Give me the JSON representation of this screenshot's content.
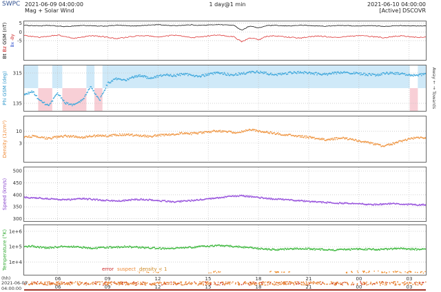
{
  "header": {
    "brand": "SWPC",
    "brand_color": "#2f4f8f",
    "start_datetime": "2021-06-09 04:00:00",
    "plot_type": "Mag + Solar Wind",
    "resolution": "1 day@1 min",
    "end_datetime": "2021-06-10 04:00:00",
    "source_status": "[Active] DSCOVR"
  },
  "footer": {
    "x_unit": "(hh)",
    "start_date": "2021-06-09",
    "start_time": "04:00:00",
    "baseline_color": "#a03326",
    "strip_colors": [
      "#e5823a",
      "#cc3322",
      "#f0a055"
    ],
    "legend": [
      {
        "label": "error",
        "color": "#cc2222"
      },
      {
        "label": "suspect",
        "color": "#ee8833"
      },
      {
        "label": "density < 1",
        "color": "#cc8822"
      }
    ]
  },
  "x_axis": {
    "total_hours": 24,
    "hours": [
      2,
      5,
      8,
      11,
      14,
      17,
      20,
      23
    ],
    "labels": [
      "06",
      "09",
      "12",
      "15",
      "18",
      "21",
      "00",
      "03"
    ]
  },
  "chart_data": [
    {
      "id": "mag",
      "type": "line",
      "scale": "linear",
      "ylabel_parts": [
        {
          "text": "Bt ",
          "color": "#111111"
        },
        {
          "text": "Bz ",
          "color": "#cc2222"
        },
        {
          "text": "GSM (nT)",
          "color": "#111111"
        }
      ],
      "ylabel2_parts": [
        {
          "text": "Bx ",
          "color": "#2244cc"
        },
        {
          "text": "-By",
          "color": "#cc2222"
        }
      ],
      "ylim": [
        -16,
        6
      ],
      "yticks": [
        {
          "v": 5,
          "label": "5"
        },
        {
          "v": 0,
          "label": "0"
        },
        {
          "v": -5,
          "label": "-5"
        }
      ],
      "series": [
        {
          "name": "Bt",
          "color": "#111111",
          "noise": 0.18,
          "values": [
            3.8,
            3.6,
            3.4,
            3.7,
            3.3,
            3.0,
            3.4,
            3.7,
            3.5,
            3.2,
            3.4,
            3.8,
            3.6,
            3.3,
            3.6,
            3.9,
            4.1,
            3.8,
            3.5,
            3.8,
            4.0,
            3.7,
            3.9,
            4.2,
            4.0,
            3.8,
            1.0,
            3.4,
            2.2,
            3.6,
            3.7,
            3.4,
            3.5,
            3.8,
            3.6,
            3.4,
            3.2,
            3.5,
            3.7,
            3.5,
            3.3,
            3.6,
            3.4,
            3.2,
            3.4,
            3.6,
            3.5,
            3.3,
            3.4
          ]
        },
        {
          "name": "Bz",
          "color": "#dd3333",
          "noise": 0.3,
          "values": [
            -2.0,
            -2.6,
            -3.1,
            -2.4,
            -1.8,
            -2.9,
            -3.6,
            -2.8,
            -2.2,
            -2.6,
            -3.1,
            -3.8,
            -3.3,
            -2.6,
            -2.1,
            -2.4,
            -2.9,
            -2.3,
            -1.9,
            -2.6,
            -3.3,
            -2.9,
            -2.3,
            -1.8,
            -2.2,
            -2.8,
            -5.5,
            -3.4,
            -4.5,
            -2.6,
            -2.2,
            -2.8,
            -3.2,
            -3.5,
            -2.9,
            -2.3,
            -2.7,
            -3.3,
            -2.9,
            -2.5,
            -2.1,
            -2.5,
            -2.9,
            -3.3,
            -2.7,
            -2.3,
            -2.7,
            -3.1,
            -2.9
          ]
        }
      ]
    },
    {
      "id": "phi",
      "type": "scatter",
      "scale": "linear",
      "ylabel_parts": [
        {
          "text": "Phi GSM (deg)",
          "color": "#3399cc"
        }
      ],
      "right_label": "Away ← → Towards",
      "ylim": [
        90,
        360
      ],
      "yticks": [
        {
          "v": 315,
          "label": "315"
        },
        {
          "v": 135,
          "label": "135"
        }
      ],
      "sector_bands": {
        "towards": {
          "v0": 225,
          "v1": 360,
          "color": "#cfe9f8"
        },
        "away": {
          "v0": 90,
          "v1": 225,
          "color": "#f8cfd6"
        }
      },
      "sectors": [
        {
          "t0": 0.0,
          "t1": 0.035,
          "s": "towards"
        },
        {
          "t0": 0.035,
          "t1": 0.07,
          "s": "away"
        },
        {
          "t0": 0.07,
          "t1": 0.095,
          "s": "towards"
        },
        {
          "t0": 0.095,
          "t1": 0.155,
          "s": "away"
        },
        {
          "t0": 0.155,
          "t1": 0.175,
          "s": "towards"
        },
        {
          "t0": 0.175,
          "t1": 0.195,
          "s": "away"
        },
        {
          "t0": 0.195,
          "t1": 0.96,
          "s": "towards"
        },
        {
          "t0": 0.96,
          "t1": 0.98,
          "s": "away"
        },
        {
          "t0": 0.98,
          "t1": 1.0,
          "s": "towards"
        }
      ],
      "series": [
        {
          "name": "Phi",
          "color": "#44aadd",
          "noise": 7,
          "values": [
            185,
            205,
            145,
            120,
            195,
            135,
            125,
            155,
            235,
            150,
            255,
            280,
            270,
            290,
            300,
            285,
            295,
            305,
            298,
            310,
            303,
            295,
            306,
            315,
            310,
            304,
            312,
            318,
            322,
            312,
            303,
            312,
            316,
            320,
            315,
            310,
            306,
            314,
            320,
            316,
            310,
            306,
            302,
            312,
            316,
            310,
            304,
            300,
            310
          ]
        }
      ]
    },
    {
      "id": "density",
      "type": "scatter",
      "scale": "log",
      "ylabel_parts": [
        {
          "text": "Density (1/cm³)",
          "color": "#ee8833"
        }
      ],
      "ylim": [
        0.45,
        45
      ],
      "yticks": [
        {
          "v": 10,
          "label": "10"
        },
        {
          "v": 3,
          "label": "3"
        }
      ],
      "series": [
        {
          "name": "Density",
          "color": "#f09a4a",
          "noise": 0.045,
          "values": [
            5.5,
            6.0,
            5.2,
            4.8,
            5.6,
            6.2,
            5.8,
            5.4,
            6.0,
            6.5,
            6.2,
            6.8,
            7.2,
            6.8,
            6.4,
            6.0,
            6.5,
            7.0,
            7.6,
            8.2,
            7.8,
            8.5,
            9.2,
            10.5,
            9.8,
            8.8,
            9.5,
            11.5,
            10.2,
            9.0,
            8.0,
            7.2,
            6.5,
            6.0,
            5.4,
            4.8,
            4.2,
            4.6,
            5.0,
            4.4,
            3.8,
            3.2,
            2.6,
            2.2,
            2.8,
            3.6,
            4.6,
            5.2,
            4.8
          ]
        }
      ]
    },
    {
      "id": "speed",
      "type": "scatter",
      "scale": "linear",
      "ylabel_parts": [
        {
          "text": "Speed (km/s)",
          "color": "#8844cc"
        }
      ],
      "ylim": [
        290,
        515
      ],
      "yticks": [
        {
          "v": 500,
          "label": "500"
        },
        {
          "v": 450,
          "label": "450"
        },
        {
          "v": 400,
          "label": "400"
        },
        {
          "v": 350,
          "label": "350"
        },
        {
          "v": 300,
          "label": "300"
        }
      ],
      "series": [
        {
          "name": "Speed",
          "color": "#9955dd",
          "noise": 3,
          "values": [
            390,
            388,
            386,
            383,
            381,
            379,
            381,
            384,
            381,
            378,
            376,
            374,
            376,
            379,
            381,
            379,
            376,
            373,
            371,
            373,
            376,
            379,
            382,
            386,
            391,
            394,
            396,
            392,
            388,
            385,
            382,
            380,
            378,
            375,
            372,
            370,
            368,
            366,
            365,
            363,
            362,
            360,
            359,
            361,
            363,
            361,
            359,
            358,
            359
          ]
        }
      ]
    },
    {
      "id": "temperature",
      "type": "scatter",
      "scale": "log",
      "ylabel_parts": [
        {
          "text": "Temperature (°K)",
          "color": "#33aa33"
        }
      ],
      "ylim": [
        1500,
        2500000
      ],
      "yticks": [
        {
          "v": 1000000,
          "label": "1e+6"
        },
        {
          "v": 100000,
          "label": "1e+5"
        },
        {
          "v": 10000,
          "label": "1e+4"
        }
      ],
      "flag_ranges": [
        [
          0.28,
          0.34
        ],
        [
          0.46,
          0.5
        ],
        [
          0.61,
          0.67
        ],
        [
          0.8,
          1.0
        ]
      ],
      "flag_color": "#ee8822",
      "series": [
        {
          "name": "Temperature",
          "color": "#44bb44",
          "noise": 0.055,
          "values": [
            100000,
            110000,
            90000,
            85000,
            95000,
            105000,
            100000,
            90000,
            80000,
            85000,
            90000,
            95000,
            100000,
            95000,
            90000,
            85000,
            80000,
            75000,
            80000,
            85000,
            90000,
            100000,
            110000,
            120000,
            115000,
            105000,
            95000,
            85000,
            75000,
            70000,
            65000,
            68000,
            72000,
            76000,
            72000,
            68000,
            64000,
            60000,
            64000,
            68000,
            72000,
            68000,
            64000,
            68000,
            72000,
            76000,
            72000,
            68000,
            70000
          ]
        }
      ]
    }
  ]
}
